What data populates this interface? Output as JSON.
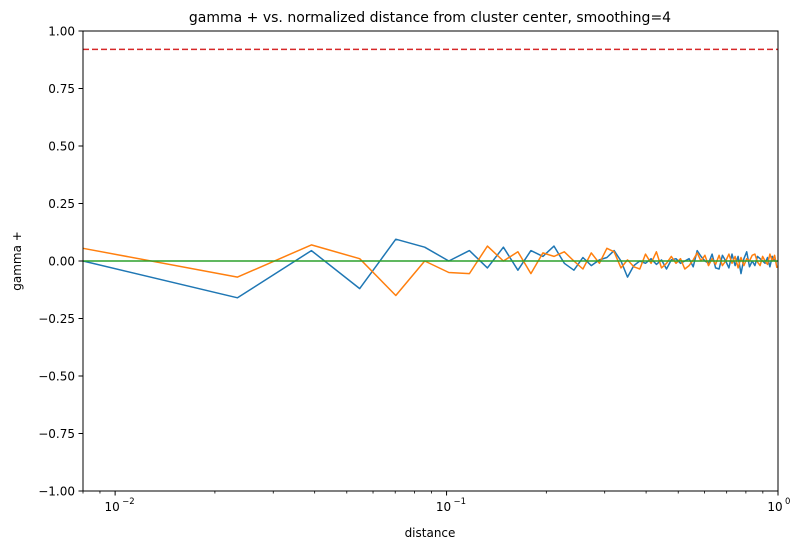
{
  "chart_data": {
    "type": "line",
    "title": "gamma + vs. normalized distance from cluster center, smoothing=4",
    "xlabel": "distance",
    "ylabel": "gamma +",
    "xscale": "log",
    "xlim": [
      0.008,
      1.0
    ],
    "ylim": [
      -1.0,
      1.0
    ],
    "xticks": [
      {
        "value": 0.01,
        "label": "10"
      },
      {
        "value": 0.1,
        "label": "10"
      },
      {
        "value": 1.0,
        "label": "10"
      }
    ],
    "xtick_exponents": [
      "−2",
      "−1",
      "0"
    ],
    "yticks": [
      {
        "value": -1.0,
        "label": "−1.00"
      },
      {
        "value": -0.75,
        "label": "−0.75"
      },
      {
        "value": -0.5,
        "label": "−0.50"
      },
      {
        "value": -0.25,
        "label": "−0.25"
      },
      {
        "value": 0.0,
        "label": "0.00"
      },
      {
        "value": 0.25,
        "label": "0.25"
      },
      {
        "value": 0.5,
        "label": "0.50"
      },
      {
        "value": 0.75,
        "label": "0.75"
      },
      {
        "value": 1.0,
        "label": "1.00"
      }
    ],
    "grid": false,
    "legend": "none",
    "series": [
      {
        "color": "#1f77b4",
        "style": "solid",
        "x": [
          0.0078,
          0.0234,
          0.0391,
          0.0547,
          0.0703,
          0.0859,
          0.1016,
          0.1172,
          0.1328,
          0.1484,
          0.1641,
          0.1797,
          0.1953,
          0.2109,
          0.2266,
          0.2422,
          0.2578,
          0.2734,
          0.2891,
          0.3047,
          0.3203,
          0.3359,
          0.3516,
          0.3672,
          0.3828,
          0.3984,
          0.4141,
          0.4297,
          0.4453,
          0.4609,
          0.4766,
          0.4922,
          0.5078,
          0.5234,
          0.5391,
          0.5547,
          0.5703,
          0.5859,
          0.6016,
          0.6172,
          0.6328,
          0.6484,
          0.6641,
          0.6797,
          0.6953,
          0.7109,
          0.7266,
          0.7422,
          0.7578,
          0.7734,
          0.7891,
          0.8047,
          0.8203,
          0.8359,
          0.8516,
          0.8672,
          0.8828,
          0.8984,
          0.9141,
          0.9297,
          0.9453,
          0.9609,
          0.9766,
          0.9922
        ],
        "y": [
          0.0,
          -0.16,
          0.045,
          -0.12,
          0.095,
          0.06,
          0.0,
          0.045,
          -0.03,
          0.06,
          -0.04,
          0.045,
          0.02,
          0.065,
          -0.01,
          -0.04,
          0.015,
          -0.02,
          0.005,
          0.015,
          0.045,
          0.0,
          -0.07,
          -0.02,
          0.0,
          -0.01,
          0.01,
          -0.015,
          0.005,
          -0.035,
          0.005,
          0.01,
          -0.01,
          0.0,
          0.01,
          -0.025,
          0.045,
          0.02,
          0.0,
          -0.01,
          0.03,
          -0.03,
          -0.035,
          0.025,
          0.0,
          -0.03,
          0.03,
          -0.02,
          0.02,
          -0.055,
          0.01,
          0.04,
          -0.025,
          0.0,
          -0.02,
          0.02,
          0.01,
          0.0,
          -0.01,
          0.015,
          -0.025,
          0.02,
          0.0,
          -0.005
        ]
      },
      {
        "color": "#ff7f0e",
        "style": "solid",
        "x": [
          0.0078,
          0.0234,
          0.0391,
          0.0547,
          0.0703,
          0.0859,
          0.1016,
          0.1172,
          0.1328,
          0.1484,
          0.1641,
          0.1797,
          0.1953,
          0.2109,
          0.2266,
          0.2422,
          0.2578,
          0.2734,
          0.2891,
          0.3047,
          0.3203,
          0.3359,
          0.3516,
          0.3672,
          0.3828,
          0.3984,
          0.4141,
          0.4297,
          0.4453,
          0.4609,
          0.4766,
          0.4922,
          0.5078,
          0.5234,
          0.5391,
          0.5547,
          0.5703,
          0.5859,
          0.6016,
          0.6172,
          0.6328,
          0.6484,
          0.6641,
          0.6797,
          0.6953,
          0.7109,
          0.7266,
          0.7422,
          0.7578,
          0.7734,
          0.7891,
          0.8047,
          0.8203,
          0.8359,
          0.8516,
          0.8672,
          0.8828,
          0.8984,
          0.9141,
          0.9297,
          0.9453,
          0.9609,
          0.9766,
          0.9922
        ],
        "y": [
          0.055,
          -0.07,
          0.07,
          0.01,
          -0.15,
          0.0,
          -0.05,
          -0.055,
          0.065,
          0.0,
          0.04,
          -0.055,
          0.035,
          0.02,
          0.04,
          0.0,
          -0.035,
          0.035,
          -0.01,
          0.055,
          0.04,
          -0.03,
          0.005,
          -0.025,
          -0.035,
          0.03,
          -0.01,
          0.04,
          -0.03,
          -0.01,
          0.02,
          -0.01,
          0.01,
          -0.035,
          -0.02,
          0.005,
          0.035,
          0.0,
          0.025,
          -0.02,
          0.01,
          -0.015,
          0.025,
          -0.02,
          0.0,
          0.03,
          -0.01,
          0.02,
          -0.03,
          0.015,
          -0.02,
          0.01,
          0.0,
          0.025,
          0.03,
          -0.005,
          -0.02,
          0.02,
          0.0,
          -0.015,
          0.03,
          0.0,
          0.025,
          -0.03
        ]
      },
      {
        "color": "#2ca02c",
        "style": "solid",
        "x": [
          0.008,
          1.0
        ],
        "y": [
          0.0,
          0.0
        ]
      },
      {
        "color": "#d62728",
        "style": "dashed",
        "x": [
          0.008,
          1.0
        ],
        "y": [
          0.92,
          0.92
        ]
      }
    ]
  }
}
